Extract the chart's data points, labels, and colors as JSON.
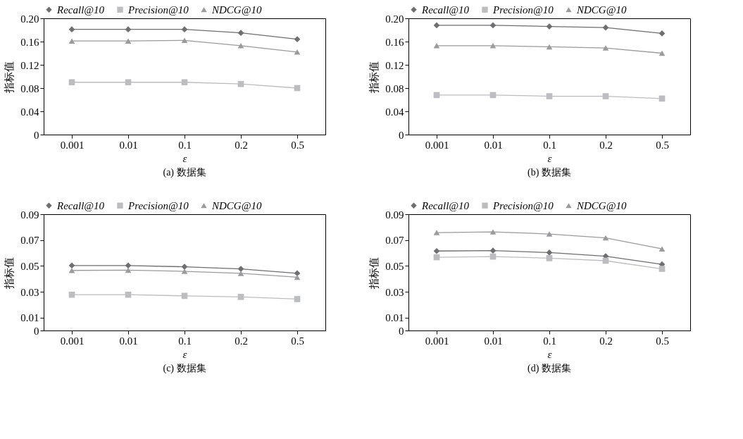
{
  "chart_data": [
    {
      "type": "line",
      "title": "(a) 数据集",
      "xlabel": "ε",
      "ylabel": "指标值",
      "categories": [
        "0.001",
        "0.01",
        "0.1",
        "0.2",
        "0.5"
      ],
      "ylim": [
        0,
        0.2
      ],
      "yticks": [
        0,
        0.04,
        0.08,
        0.12,
        0.16,
        {
          "value": 0.2,
          "label": "0.20"
        }
      ],
      "grid": false,
      "legend": "top",
      "line_style": "solid",
      "series": [
        {
          "name": "Recall@10",
          "color": "#6e6e73",
          "marker": "diamond",
          "values": [
            0.181,
            0.181,
            0.181,
            0.175,
            0.164
          ]
        },
        {
          "name": "Precision@10",
          "color": "#bcbdc1",
          "marker": "square",
          "values": [
            0.09,
            0.09,
            0.09,
            0.087,
            0.08
          ]
        },
        {
          "name": "NDCG@10",
          "color": "#9a9b9f",
          "marker": "triangle",
          "values": [
            0.161,
            0.161,
            0.162,
            0.153,
            0.142
          ]
        }
      ]
    },
    {
      "type": "line",
      "title": "(b) 数据集",
      "xlabel": "ε",
      "ylabel": "指标值",
      "categories": [
        "0.001",
        "0.01",
        "0.1",
        "0.2",
        "0.5"
      ],
      "ylim": [
        0,
        0.2
      ],
      "yticks": [
        0,
        0.04,
        0.08,
        0.12,
        0.16,
        {
          "value": 0.2,
          "label": "0.20"
        }
      ],
      "grid": false,
      "legend": "top",
      "line_style": "solid",
      "series": [
        {
          "name": "Recall@10",
          "color": "#6e6e73",
          "marker": "diamond",
          "values": [
            0.188,
            0.188,
            0.186,
            0.184,
            0.174
          ]
        },
        {
          "name": "Precision@10",
          "color": "#bcbdc1",
          "marker": "square",
          "values": [
            0.068,
            0.068,
            0.066,
            0.066,
            0.062
          ]
        },
        {
          "name": "NDCG@10",
          "color": "#9a9b9f",
          "marker": "triangle",
          "values": [
            0.153,
            0.153,
            0.151,
            0.149,
            0.14
          ]
        }
      ]
    },
    {
      "type": "line",
      "title": "(c) 数据集",
      "xlabel": "ε",
      "ylabel": "指标值",
      "categories": [
        "0.001",
        "0.01",
        "0.1",
        "0.2",
        "0.5"
      ],
      "ylim": [
        0,
        0.09
      ],
      "yticks": [
        0,
        0.01,
        0.03,
        0.05,
        0.07,
        0.09
      ],
      "grid": false,
      "legend": "top",
      "line_style": "solid",
      "series": [
        {
          "name": "Recall@10",
          "color": "#6e6e73",
          "marker": "diamond",
          "values": [
            0.0503,
            0.0503,
            0.0493,
            0.0477,
            0.0443
          ]
        },
        {
          "name": "Precision@10",
          "color": "#bcbdc1",
          "marker": "square",
          "values": [
            0.0277,
            0.0277,
            0.0268,
            0.026,
            0.0243
          ]
        },
        {
          "name": "NDCG@10",
          "color": "#9a9b9f",
          "marker": "triangle",
          "values": [
            0.0465,
            0.0467,
            0.0458,
            0.0442,
            0.0412
          ]
        }
      ]
    },
    {
      "type": "line",
      "title": "(d) 数据集",
      "xlabel": "ε",
      "ylabel": "指标值",
      "categories": [
        "0.001",
        "0.01",
        "0.1",
        "0.2",
        "0.5"
      ],
      "ylim": [
        0,
        0.09
      ],
      "yticks": [
        0,
        0.01,
        0.03,
        0.05,
        0.07,
        0.09
      ],
      "grid": false,
      "legend": "top",
      "line_style": "solid",
      "series": [
        {
          "name": "Recall@10",
          "color": "#6e6e73",
          "marker": "diamond",
          "values": [
            0.0615,
            0.0618,
            0.0603,
            0.0575,
            0.0512
          ]
        },
        {
          "name": "Precision@10",
          "color": "#bcbdc1",
          "marker": "square",
          "values": [
            0.0567,
            0.0572,
            0.056,
            0.054,
            0.0477
          ]
        },
        {
          "name": "NDCG@10",
          "color": "#9a9b9f",
          "marker": "triangle",
          "values": [
            0.0758,
            0.0763,
            0.0747,
            0.0717,
            0.0632
          ]
        }
      ]
    }
  ]
}
